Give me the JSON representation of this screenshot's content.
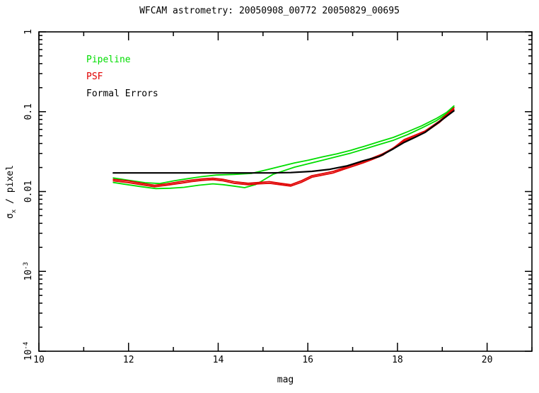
{
  "title": "WFCAM astrometry: 20050908_00772 20050829_00695",
  "colors": {
    "background": "#ffffff",
    "axis": "#000000",
    "pipeline": "#00dd00",
    "psf": "#e00000",
    "formal_errors": "#000000"
  },
  "legend": {
    "items": [
      {
        "label": "Pipeline",
        "color": "#00dd00"
      },
      {
        "label": "PSF",
        "color": "#e00000"
      },
      {
        "label": "Formal Errors",
        "color": "#000000"
      }
    ]
  },
  "axes": {
    "xlabel": "mag",
    "ylabel": {
      "symbol": "σ",
      "subscript": "x",
      "suffix": " / pixel"
    }
  },
  "chart_data": {
    "type": "line",
    "title": "WFCAM astrometry: 20050908_00772 20050829_00695",
    "xlabel": "mag",
    "ylabel": "sigma_x / pixel",
    "xlim": [
      10,
      21
    ],
    "ylim": [
      0.0001,
      1
    ],
    "yscale": "log",
    "grid": false,
    "legend_position": "top-left-inside",
    "x_major_ticks": [
      10,
      12,
      14,
      16,
      18,
      20
    ],
    "x_minor_ticks": [
      11,
      13,
      15,
      17,
      19,
      21
    ],
    "y_major_ticks": [
      {
        "value": 1,
        "label": "1",
        "exponent": null
      },
      {
        "value": 0.1,
        "label": "0.1",
        "exponent": null
      },
      {
        "value": 0.01,
        "label": "0.01",
        "exponent": null
      },
      {
        "value": 0.001,
        "label": "10",
        "exponent": "-3"
      },
      {
        "value": 0.0001,
        "label": "10",
        "exponent": "-4"
      }
    ],
    "series": [
      {
        "name": "Pipeline (upper)",
        "color": "#00dd00",
        "width": 1.8,
        "points": [
          [
            11.66,
            0.0148
          ],
          [
            11.98,
            0.0139
          ],
          [
            12.37,
            0.0129
          ],
          [
            12.69,
            0.0126
          ],
          [
            13.01,
            0.0136
          ],
          [
            13.32,
            0.0145
          ],
          [
            13.64,
            0.0154
          ],
          [
            13.96,
            0.0161
          ],
          [
            14.35,
            0.0164
          ],
          [
            14.75,
            0.0169
          ],
          [
            15.06,
            0.0186
          ],
          [
            15.38,
            0.0206
          ],
          [
            15.7,
            0.0228
          ],
          [
            16.01,
            0.0247
          ],
          [
            16.33,
            0.0272
          ],
          [
            16.65,
            0.0297
          ],
          [
            16.96,
            0.0329
          ],
          [
            17.28,
            0.0372
          ],
          [
            17.59,
            0.0421
          ],
          [
            17.91,
            0.0477
          ],
          [
            18.23,
            0.0563
          ],
          [
            18.54,
            0.0665
          ],
          [
            18.86,
            0.0817
          ],
          [
            19.1,
            0.0983
          ],
          [
            19.26,
            0.118
          ]
        ]
      },
      {
        "name": "Pipeline (lower)",
        "color": "#00dd00",
        "width": 1.8,
        "points": [
          [
            11.66,
            0.013
          ],
          [
            11.98,
            0.0122
          ],
          [
            12.29,
            0.0115
          ],
          [
            12.61,
            0.0109
          ],
          [
            12.93,
            0.011
          ],
          [
            13.24,
            0.0113
          ],
          [
            13.56,
            0.012
          ],
          [
            13.88,
            0.0125
          ],
          [
            14.11,
            0.0122
          ],
          [
            14.35,
            0.0117
          ],
          [
            14.59,
            0.0112
          ],
          [
            14.83,
            0.0122
          ],
          [
            14.98,
            0.0136
          ],
          [
            15.22,
            0.0164
          ],
          [
            15.46,
            0.0182
          ],
          [
            15.7,
            0.0202
          ],
          [
            16.01,
            0.0223
          ],
          [
            16.33,
            0.0247
          ],
          [
            16.65,
            0.0274
          ],
          [
            16.96,
            0.0303
          ],
          [
            17.28,
            0.0343
          ],
          [
            17.59,
            0.0388
          ],
          [
            17.91,
            0.0439
          ],
          [
            18.23,
            0.0518
          ],
          [
            18.54,
            0.0625
          ],
          [
            18.86,
            0.0768
          ],
          [
            19.1,
            0.0943
          ],
          [
            19.26,
            0.114
          ]
        ]
      },
      {
        "name": "PSF (upper)",
        "color": "#e00000",
        "width": 1.8,
        "points": [
          [
            11.66,
            0.0142
          ],
          [
            11.98,
            0.0136
          ],
          [
            12.29,
            0.0127
          ],
          [
            12.58,
            0.012
          ],
          [
            12.85,
            0.0125
          ],
          [
            13.16,
            0.0133
          ],
          [
            13.4,
            0.0139
          ],
          [
            13.64,
            0.0144
          ],
          [
            13.88,
            0.0147
          ],
          [
            14.11,
            0.0142
          ],
          [
            14.35,
            0.0133
          ],
          [
            14.67,
            0.0127
          ],
          [
            14.91,
            0.013
          ],
          [
            15.14,
            0.0133
          ],
          [
            15.38,
            0.0127
          ],
          [
            15.62,
            0.0122
          ],
          [
            15.85,
            0.0136
          ],
          [
            16.09,
            0.0158
          ],
          [
            16.33,
            0.0168
          ],
          [
            16.57,
            0.0179
          ],
          [
            16.8,
            0.0198
          ],
          [
            17.04,
            0.0219
          ],
          [
            17.23,
            0.0237
          ],
          [
            17.44,
            0.0263
          ],
          [
            17.67,
            0.0297
          ],
          [
            17.91,
            0.0351
          ],
          [
            18.15,
            0.0448
          ],
          [
            18.39,
            0.0508
          ],
          [
            18.62,
            0.0575
          ],
          [
            18.94,
            0.0768
          ],
          [
            19.26,
            0.112
          ]
        ]
      },
      {
        "name": "PSF (lower)",
        "color": "#e00000",
        "width": 1.8,
        "points": [
          [
            11.66,
            0.0136
          ],
          [
            11.98,
            0.013
          ],
          [
            12.29,
            0.0122
          ],
          [
            12.58,
            0.0115
          ],
          [
            12.85,
            0.012
          ],
          [
            13.16,
            0.0127
          ],
          [
            13.4,
            0.0133
          ],
          [
            13.64,
            0.0138
          ],
          [
            13.88,
            0.0141
          ],
          [
            14.11,
            0.0136
          ],
          [
            14.35,
            0.0127
          ],
          [
            14.67,
            0.0122
          ],
          [
            14.91,
            0.0125
          ],
          [
            15.14,
            0.0127
          ],
          [
            15.38,
            0.0122
          ],
          [
            15.62,
            0.0117
          ],
          [
            15.85,
            0.013
          ],
          [
            16.09,
            0.0151
          ],
          [
            16.33,
            0.0161
          ],
          [
            16.57,
            0.0171
          ],
          [
            16.8,
            0.019
          ],
          [
            17.04,
            0.021
          ],
          [
            17.23,
            0.0228
          ],
          [
            17.44,
            0.0252
          ],
          [
            17.67,
            0.0285
          ],
          [
            17.91,
            0.0353
          ],
          [
            18.15,
            0.043
          ],
          [
            18.39,
            0.0487
          ],
          [
            18.62,
            0.0552
          ],
          [
            18.94,
            0.0737
          ],
          [
            19.26,
            0.107
          ]
        ]
      },
      {
        "name": "Formal Errors",
        "color": "#000000",
        "width": 2.2,
        "points": [
          [
            11.66,
            0.0171
          ],
          [
            13.9,
            0.0171
          ],
          [
            15.14,
            0.0171
          ],
          [
            15.62,
            0.0173
          ],
          [
            16.09,
            0.0179
          ],
          [
            16.49,
            0.019
          ],
          [
            16.88,
            0.021
          ],
          [
            17.23,
            0.0242
          ],
          [
            17.59,
            0.0274
          ],
          [
            17.91,
            0.0343
          ],
          [
            18.15,
            0.0413
          ],
          [
            18.39,
            0.0477
          ],
          [
            18.62,
            0.0552
          ],
          [
            18.94,
            0.0752
          ],
          [
            19.26,
            0.1025
          ]
        ]
      }
    ]
  }
}
